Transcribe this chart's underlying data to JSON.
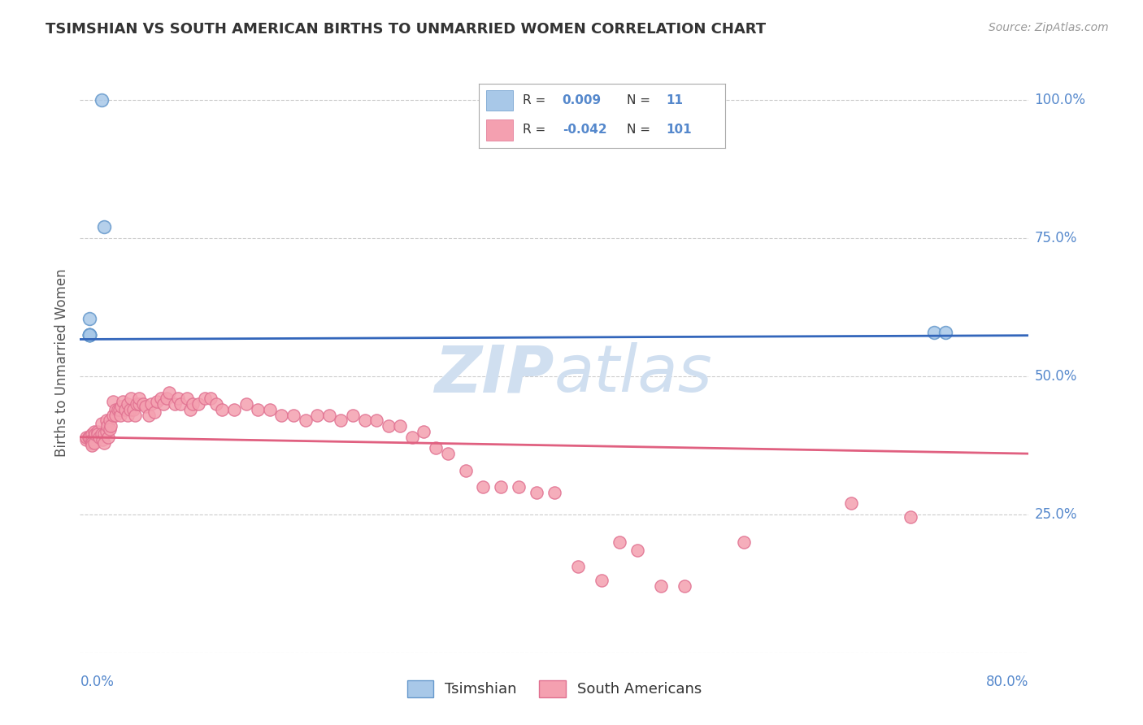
{
  "title": "TSIMSHIAN VS SOUTH AMERICAN BIRTHS TO UNMARRIED WOMEN CORRELATION CHART",
  "source": "Source: ZipAtlas.com",
  "ylabel": "Births to Unmarried Women",
  "blue_color": "#a8c8e8",
  "blue_edge_color": "#6699cc",
  "pink_color": "#f4a0b0",
  "pink_edge_color": "#e07090",
  "blue_line_color": "#3366bb",
  "pink_line_color": "#e06080",
  "background_color": "#ffffff",
  "grid_color": "#cccccc",
  "right_label_color": "#5588cc",
  "watermark_color": "#d0dff0",
  "tsimshian_x": [
    0.018,
    0.02,
    0.008,
    0.008,
    0.008,
    0.008,
    0.008,
    0.008,
    0.72,
    0.73,
    0.008
  ],
  "tsimshian_y": [
    1.0,
    0.77,
    0.605,
    0.575,
    0.575,
    0.575,
    0.575,
    0.575,
    0.58,
    0.58,
    0.575
  ],
  "sa_x": [
    0.005,
    0.005,
    0.007,
    0.008,
    0.01,
    0.01,
    0.01,
    0.01,
    0.01,
    0.012,
    0.012,
    0.013,
    0.015,
    0.015,
    0.016,
    0.018,
    0.018,
    0.019,
    0.02,
    0.02,
    0.022,
    0.022,
    0.023,
    0.024,
    0.025,
    0.025,
    0.026,
    0.028,
    0.028,
    0.03,
    0.03,
    0.032,
    0.033,
    0.034,
    0.035,
    0.036,
    0.038,
    0.04,
    0.04,
    0.042,
    0.043,
    0.045,
    0.046,
    0.048,
    0.05,
    0.05,
    0.053,
    0.055,
    0.058,
    0.06,
    0.063,
    0.065,
    0.068,
    0.07,
    0.073,
    0.075,
    0.08,
    0.083,
    0.085,
    0.09,
    0.093,
    0.095,
    0.1,
    0.105,
    0.11,
    0.115,
    0.12,
    0.13,
    0.14,
    0.15,
    0.16,
    0.17,
    0.18,
    0.19,
    0.2,
    0.21,
    0.22,
    0.23,
    0.24,
    0.25,
    0.26,
    0.27,
    0.28,
    0.29,
    0.3,
    0.31,
    0.325,
    0.34,
    0.355,
    0.37,
    0.385,
    0.4,
    0.42,
    0.44,
    0.455,
    0.47,
    0.49,
    0.51,
    0.56,
    0.65,
    0.7
  ],
  "sa_y": [
    0.385,
    0.39,
    0.39,
    0.39,
    0.395,
    0.385,
    0.38,
    0.38,
    0.375,
    0.4,
    0.38,
    0.395,
    0.4,
    0.395,
    0.39,
    0.415,
    0.395,
    0.385,
    0.395,
    0.38,
    0.42,
    0.4,
    0.41,
    0.39,
    0.42,
    0.405,
    0.41,
    0.455,
    0.43,
    0.44,
    0.43,
    0.44,
    0.44,
    0.43,
    0.445,
    0.455,
    0.44,
    0.45,
    0.43,
    0.44,
    0.46,
    0.44,
    0.43,
    0.45,
    0.45,
    0.46,
    0.45,
    0.445,
    0.43,
    0.45,
    0.435,
    0.455,
    0.46,
    0.45,
    0.46,
    0.47,
    0.45,
    0.46,
    0.45,
    0.46,
    0.44,
    0.45,
    0.45,
    0.46,
    0.46,
    0.45,
    0.44,
    0.44,
    0.45,
    0.44,
    0.44,
    0.43,
    0.43,
    0.42,
    0.43,
    0.43,
    0.42,
    0.43,
    0.42,
    0.42,
    0.41,
    0.41,
    0.39,
    0.4,
    0.37,
    0.36,
    0.33,
    0.3,
    0.3,
    0.3,
    0.29,
    0.29,
    0.155,
    0.13,
    0.2,
    0.185,
    0.12,
    0.12,
    0.2,
    0.27,
    0.245
  ],
  "blue_line_x": [
    0.0,
    0.8
  ],
  "blue_line_y": [
    0.567,
    0.574
  ],
  "pink_line_x": [
    0.0,
    0.8
  ],
  "pink_line_y": [
    0.39,
    0.36
  ],
  "xlim": [
    0.0,
    0.8
  ],
  "ylim": [
    0.0,
    1.05
  ],
  "yticks": [
    0.0,
    0.25,
    0.5,
    0.75,
    1.0
  ],
  "ytick_labels": [
    "",
    "25.0%",
    "50.0%",
    "75.0%",
    "100.0%"
  ],
  "xtick_left": "0.0%",
  "xtick_right": "80.0%"
}
